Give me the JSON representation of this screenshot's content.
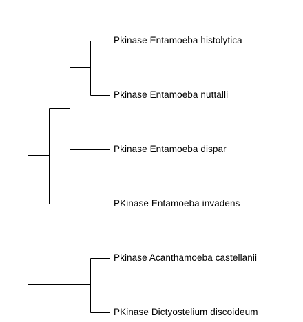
{
  "tree": {
    "leaves": [
      {
        "id": "leaf-1",
        "label": "Pkinase Entamoeba histolytica"
      },
      {
        "id": "leaf-2",
        "label": "Pkinase Entamoeba nuttalli"
      },
      {
        "id": "leaf-3",
        "label": "Pkinase Entamoeba dispar"
      },
      {
        "id": "leaf-4",
        "label": "PKinase Entamoeba invadens"
      },
      {
        "id": "leaf-5",
        "label": "Pkinase Acanthamoeba castellanii"
      },
      {
        "id": "leaf-6",
        "label": "PKinase Dictyostelium discoideum"
      }
    ],
    "colors": {
      "line": "#000000",
      "text": "#000000",
      "background": "#ffffff"
    }
  }
}
